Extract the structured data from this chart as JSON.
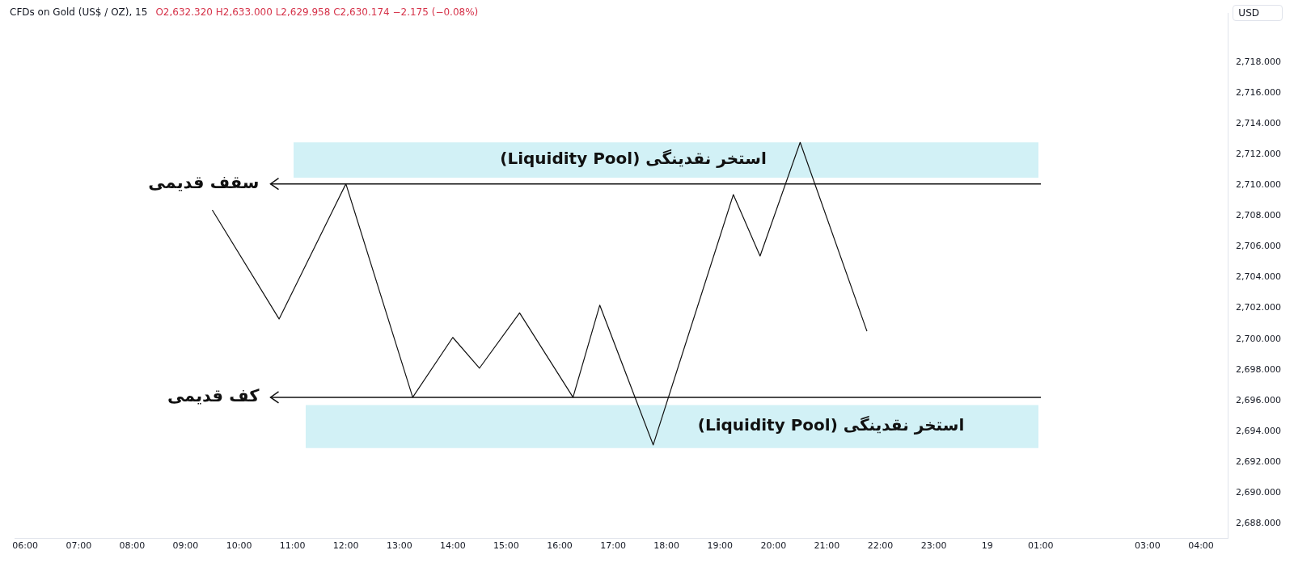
{
  "chart_data": {
    "type": "line",
    "title": "CFDs on Gold (US$ / OZ), 15",
    "subtitle": "O2,632.320  H2,633.000  L2,629.958  C2,630.174  −2.175 (−0.08%)",
    "ylabel": "USD",
    "x": [
      "--10-18T09:30",
      "--10-18T10:45",
      "--10-18T12:00",
      "--10-18T13:15",
      "--10-18T14:00",
      "--10-18T14:30",
      "--10-18T15:15",
      "--10-18T16:15",
      "--10-18T16:45",
      "--10-18T17:45",
      "--10-18T19:15",
      "--10-18T19:45",
      "--10-18T20:30",
      "--10-18T21:45"
    ],
    "series": [
      {
        "color": "#111111",
        "values": [
          2708.4,
          2701.3,
          2710.1,
          2696.2,
          2700.1,
          2698.1,
          2701.7,
          2696.2,
          2702.2,
          2693.1,
          2709.4,
          2705.4,
          2712.8,
          2700.5
        ]
      }
    ],
    "xlim": [
      "--10-18T05:48",
      "--10-19T04:30"
    ],
    "xticks": [
      {
        "value": "--10-18T06:00",
        "label": "06:00"
      },
      {
        "value": "--10-18T07:00",
        "label": "07:00"
      },
      {
        "value": "--10-18T08:00",
        "label": "08:00"
      },
      {
        "value": "--10-18T09:00",
        "label": "09:00"
      },
      {
        "value": "--10-18T10:00",
        "label": "10:00"
      },
      {
        "value": "--10-18T11:00",
        "label": "11:00"
      },
      {
        "value": "--10-18T12:00",
        "label": "12:00"
      },
      {
        "value": "--10-18T13:00",
        "label": "13:00"
      },
      {
        "value": "--10-18T14:00",
        "label": "14:00"
      },
      {
        "value": "--10-18T15:00",
        "label": "15:00"
      },
      {
        "value": "--10-18T16:00",
        "label": "16:00"
      },
      {
        "value": "--10-18T17:00",
        "label": "17:00"
      },
      {
        "value": "--10-18T18:00",
        "label": "18:00"
      },
      {
        "value": "--10-18T19:00",
        "label": "19:00"
      },
      {
        "value": "--10-18T20:00",
        "label": "20:00"
      },
      {
        "value": "--10-18T21:00",
        "label": "21:00"
      },
      {
        "value": "--10-18T22:00",
        "label": "22:00"
      },
      {
        "value": "--10-18T23:00",
        "label": "23:00"
      },
      {
        "value": "--10-19T00:00",
        "label": "19"
      },
      {
        "value": "--10-19T01:00",
        "label": "01:00"
      },
      {
        "value": "--10-19T03:00",
        "label": "03:00"
      },
      {
        "value": "--10-19T04:00",
        "label": "04:00"
      }
    ],
    "ylim": [
      2687,
      2721.2
    ],
    "yticks": [
      {
        "value": 2688,
        "label": "2,688.000"
      },
      {
        "value": 2690,
        "label": "2,690.000"
      },
      {
        "value": 2692,
        "label": "2,692.000"
      },
      {
        "value": 2694,
        "label": "2,694.000"
      },
      {
        "value": 2696,
        "label": "2,696.000"
      },
      {
        "value": 2698,
        "label": "2,698.000"
      },
      {
        "value": 2700,
        "label": "2,700.000"
      },
      {
        "value": 2702,
        "label": "2,702.000"
      },
      {
        "value": 2704,
        "label": "2,704.000"
      },
      {
        "value": 2706,
        "label": "2,706.000"
      },
      {
        "value": 2708,
        "label": "2,708.000"
      },
      {
        "value": 2710,
        "label": "2,710.000"
      },
      {
        "value": 2712,
        "label": "2,712.000"
      },
      {
        "value": 2714,
        "label": "2,714.000"
      },
      {
        "value": 2716,
        "label": "2,716.000"
      },
      {
        "value": 2718,
        "label": "2,718.000"
      }
    ],
    "ref_lines": [
      {
        "axis": "y",
        "value": 2710.1,
        "label": "سقف قدیمی",
        "color": "#111111"
      },
      {
        "axis": "y",
        "value": 2696.2,
        "label": "کف قدیمی",
        "color": "#111111"
      }
    ],
    "bands": [
      {
        "axis": "y",
        "from": 2710.5,
        "to": 2712.8,
        "label": "استخر نقدینگی (Liquidity Pool)",
        "color": "#d2f1f6"
      },
      {
        "axis": "y",
        "from": 2692.9,
        "to": 2695.7,
        "label": "استخر نقدینگی (Liquidity Pool)",
        "color": "#d2f1f6"
      }
    ],
    "grid": false,
    "legend": false
  }
}
